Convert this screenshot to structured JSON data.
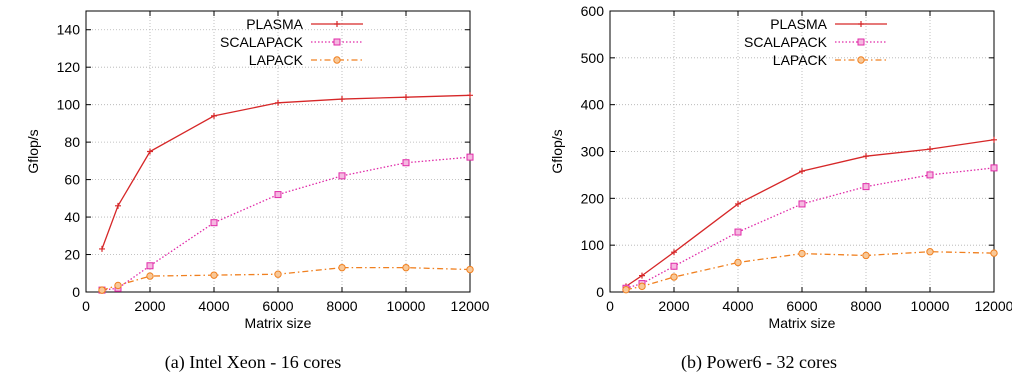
{
  "figure": {
    "panels": [
      {
        "caption": "(a)  Intel Xeon - 16 cores"
      },
      {
        "caption": "(b)  Power6 - 32 cores"
      }
    ]
  },
  "chart_data": [
    {
      "type": "line",
      "title": "",
      "xlabel": "Matrix size",
      "ylabel": "Gflop/s",
      "xlim": [
        0,
        12000
      ],
      "ylim": [
        0,
        150
      ],
      "xticks": [
        0,
        2000,
        4000,
        6000,
        8000,
        10000,
        12000
      ],
      "yticks": [
        0,
        20,
        40,
        60,
        80,
        100,
        120,
        140
      ],
      "grid": true,
      "legend": "top",
      "x": [
        500,
        1000,
        2000,
        4000,
        6000,
        8000,
        10000,
        12000
      ],
      "series": [
        {
          "name": "PLASMA",
          "color": "#d62728",
          "marker": "plus",
          "dash": "solid",
          "values": [
            23,
            46,
            75,
            94,
            101,
            103,
            104,
            105
          ]
        },
        {
          "name": "SCALAPACK",
          "color": "#e02aa8",
          "marker": "square",
          "dash": "dotted",
          "values": [
            1,
            2,
            14,
            37,
            52,
            62,
            69,
            72
          ]
        },
        {
          "name": "LAPACK",
          "color": "#f08020",
          "marker": "circle",
          "dash": "dashdot",
          "values": [
            1,
            3.5,
            8.5,
            9,
            9.5,
            13,
            13,
            12
          ]
        }
      ]
    },
    {
      "type": "line",
      "title": "",
      "xlabel": "Matrix size",
      "ylabel": "Gflop/s",
      "xlim": [
        0,
        12000
      ],
      "ylim": [
        0,
        600
      ],
      "xticks": [
        0,
        2000,
        4000,
        6000,
        8000,
        10000,
        12000
      ],
      "yticks": [
        0,
        100,
        200,
        300,
        400,
        500,
        600
      ],
      "grid": true,
      "legend": "top",
      "x": [
        500,
        1000,
        2000,
        4000,
        6000,
        8000,
        10000,
        12000
      ],
      "series": [
        {
          "name": "PLASMA",
          "color": "#d62728",
          "marker": "plus",
          "dash": "solid",
          "values": [
            12,
            35,
            85,
            188,
            258,
            290,
            305,
            325
          ]
        },
        {
          "name": "SCALAPACK",
          "color": "#e02aa8",
          "marker": "square",
          "dash": "dotted",
          "values": [
            8,
            18,
            55,
            128,
            188,
            225,
            250,
            265
          ]
        },
        {
          "name": "LAPACK",
          "color": "#f08020",
          "marker": "circle",
          "dash": "dashdot",
          "values": [
            5,
            12,
            32,
            63,
            82,
            78,
            86,
            83
          ]
        }
      ]
    }
  ]
}
